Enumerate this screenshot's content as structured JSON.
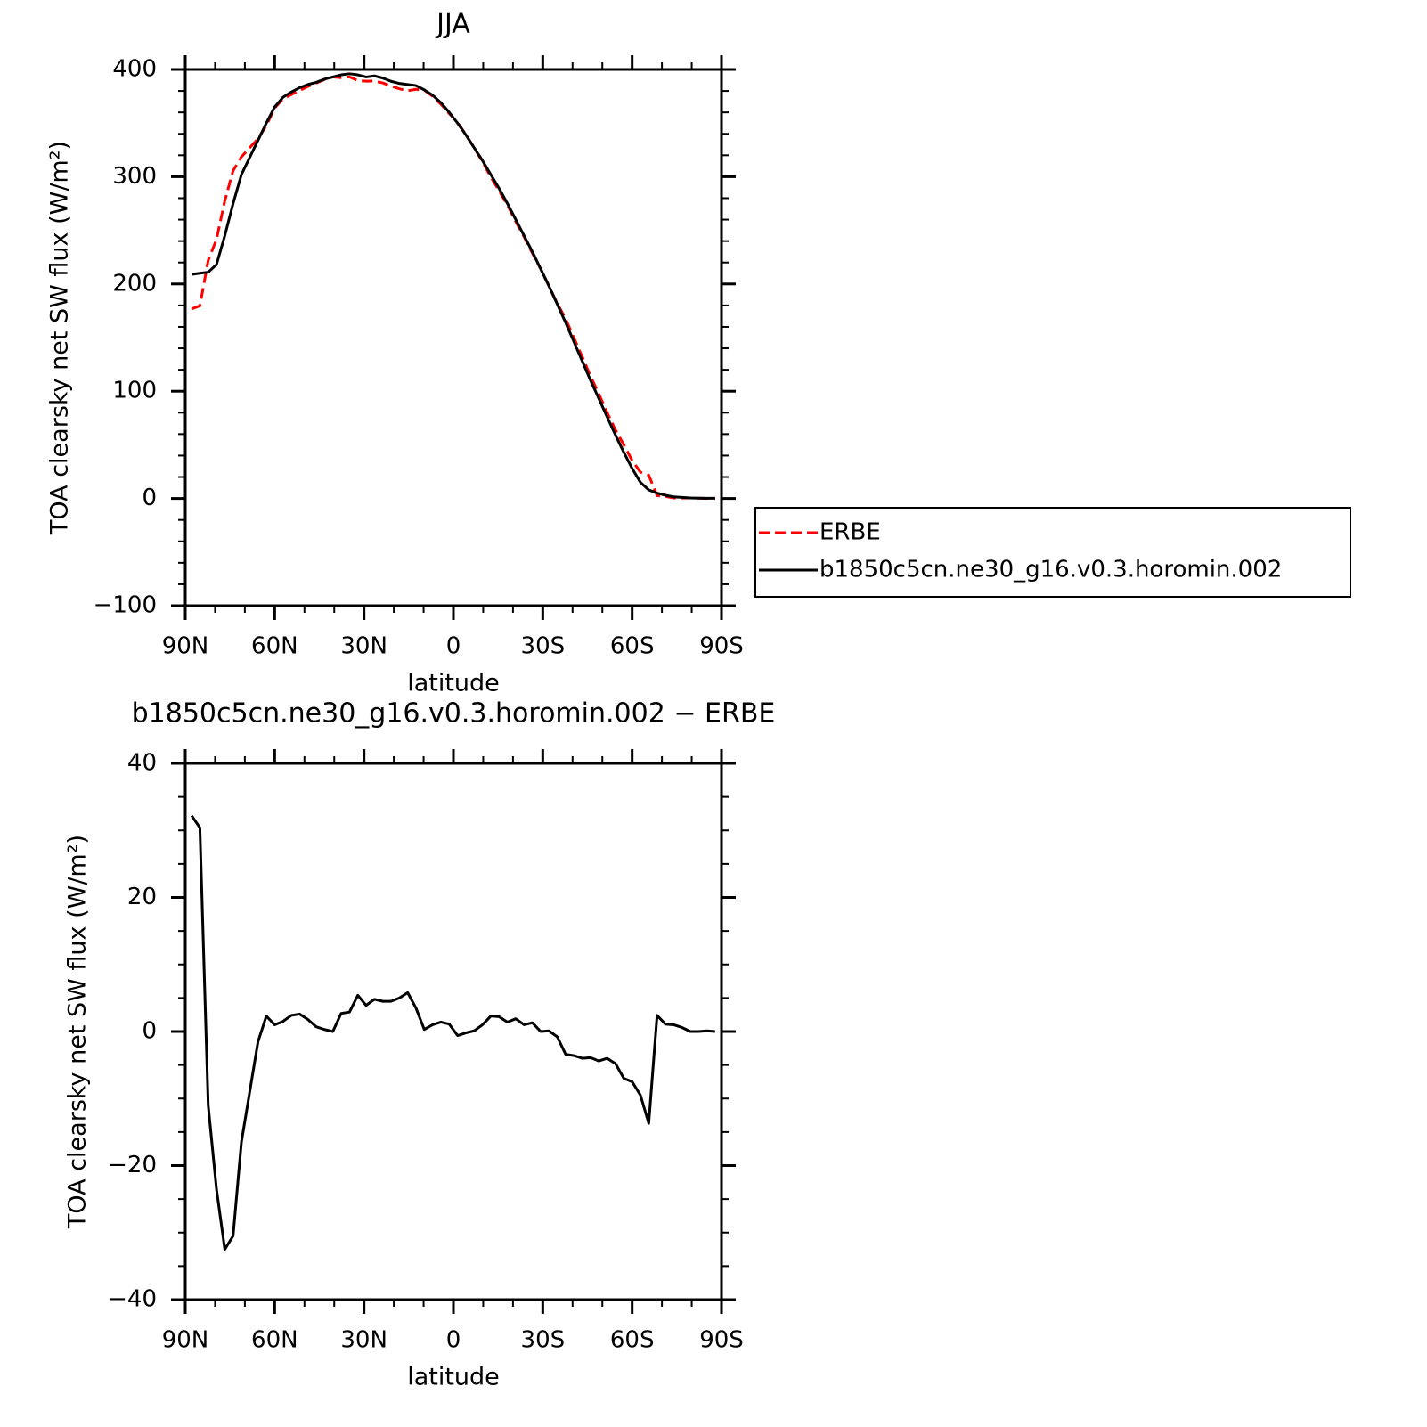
{
  "chart_data": [
    {
      "type": "line",
      "title": "JJA",
      "xlabel": "latitude",
      "ylabel": "TOA clearsky net SW flux (W/m²)",
      "x": [
        87.86,
        85.1,
        82.31,
        79.53,
        76.74,
        73.95,
        71.16,
        68.37,
        65.58,
        62.79,
        60.0,
        57.21,
        54.42,
        51.63,
        48.84,
        46.05,
        43.26,
        40.47,
        37.67,
        34.88,
        32.09,
        29.3,
        26.51,
        23.72,
        20.93,
        18.14,
        15.35,
        12.56,
        9.77,
        6.98,
        4.19,
        1.4,
        -1.4,
        -4.19,
        -6.98,
        -9.77,
        -12.56,
        -15.35,
        -18.14,
        -20.93,
        -23.72,
        -26.51,
        -29.3,
        -32.09,
        -34.88,
        -37.67,
        -40.47,
        -43.26,
        -46.05,
        -48.84,
        -51.63,
        -54.42,
        -57.21,
        -60.0,
        -62.79,
        -65.58,
        -68.37,
        -71.16,
        -73.95,
        -76.74,
        -79.53,
        -82.31,
        -85.1,
        -87.86
      ],
      "series": [
        {
          "name": "ERBE",
          "color": "#ff0000",
          "linestyle": "dashed",
          "values": [
            176.8,
            179.6,
            222,
            241.5,
            277.5,
            305.5,
            318.5,
            327,
            335.5,
            347.7,
            364,
            372.5,
            376.6,
            380.4,
            384.2,
            387.3,
            390.7,
            393,
            392.3,
            393.1,
            389.6,
            389.1,
            389.2,
            387.5,
            384.5,
            382,
            380.2,
            381.5,
            380.7,
            375,
            367.6,
            358.9,
            350.6,
            339.2,
            326.9,
            314,
            299.7,
            286.8,
            273.6,
            258.1,
            244,
            228.7,
            214,
            197.9,
            181.8,
            167.4,
            149.6,
            132,
            113.9,
            97.4,
            80,
            63.8,
            50,
            35.5,
            24.5,
            21.7,
            2.6,
            1.9,
            0.5,
            0.4,
            0.5,
            0.3,
            0.1,
            0.2
          ]
        },
        {
          "name": "b1850c5cn.ne30_g16.v0.3.horomin.002",
          "color": "#000000",
          "linestyle": "solid",
          "values": [
            209,
            210,
            211,
            218,
            245,
            275,
            302,
            318,
            334,
            350,
            365,
            374,
            379,
            383,
            386,
            388,
            391,
            393,
            395,
            396,
            395,
            393,
            394,
            392,
            389,
            387,
            386,
            385,
            381,
            376,
            369,
            360,
            350,
            339,
            327,
            315,
            302,
            289,
            275,
            260,
            245,
            230,
            214,
            198,
            181,
            164,
            146,
            128,
            110,
            93,
            76,
            59,
            43,
            28,
            15,
            8,
            5,
            3,
            1.5,
            1,
            0.5,
            0.3,
            0.2,
            0.2
          ]
        }
      ],
      "xlim": [
        90,
        -90
      ],
      "xticks": [
        {
          "value": 90,
          "label": "90N"
        },
        {
          "value": 60,
          "label": "60N"
        },
        {
          "value": 30,
          "label": "30N"
        },
        0,
        {
          "value": -30,
          "label": "30S"
        },
        {
          "value": -60,
          "label": "60S"
        },
        {
          "value": -90,
          "label": "90S"
        }
      ],
      "ylim": [
        -100,
        400
      ],
      "yticks": [
        {
          "value": -100,
          "label": "−100"
        },
        0,
        100,
        200,
        300,
        400
      ],
      "legend": "right"
    },
    {
      "type": "line",
      "title": "b1850c5cn.ne30_g16.v0.3.horomin.002 − ERBE",
      "xlabel": "latitude",
      "ylabel": "TOA clearsky net SW flux (W/m²)",
      "x": [
        87.86,
        85.1,
        82.31,
        79.53,
        76.74,
        73.95,
        71.16,
        68.37,
        65.58,
        62.79,
        60.0,
        57.21,
        54.42,
        51.63,
        48.84,
        46.05,
        43.26,
        40.47,
        37.67,
        34.88,
        32.09,
        29.3,
        26.51,
        23.72,
        20.93,
        18.14,
        15.35,
        12.56,
        9.77,
        6.98,
        4.19,
        1.4,
        -1.4,
        -4.19,
        -6.98,
        -9.77,
        -12.56,
        -15.35,
        -18.14,
        -20.93,
        -23.72,
        -26.51,
        -29.3,
        -32.09,
        -34.88,
        -37.67,
        -40.47,
        -43.26,
        -46.05,
        -48.84,
        -51.63,
        -54.42,
        -57.21,
        -60.0,
        -62.79,
        -65.58,
        -68.37,
        -71.16,
        -73.95,
        -76.74,
        -79.53,
        -82.31,
        -85.1,
        -87.86
      ],
      "series": [
        {
          "color": "#000000",
          "linestyle": "solid",
          "values": [
            32.2,
            30.4,
            -11,
            -23.5,
            -32.5,
            -30.5,
            -16.5,
            -9,
            -1.5,
            2.3,
            1.0,
            1.5,
            2.4,
            2.6,
            1.8,
            0.7,
            0.3,
            0,
            2.7,
            2.9,
            5.4,
            3.9,
            4.8,
            4.5,
            4.5,
            5.0,
            5.8,
            3.5,
            0.3,
            1.0,
            1.4,
            1.1,
            -0.6,
            -0.2,
            0.1,
            1.0,
            2.3,
            2.2,
            1.4,
            1.9,
            1.0,
            1.3,
            0,
            0.1,
            -0.8,
            -3.4,
            -3.6,
            -4.0,
            -3.9,
            -4.4,
            -4.0,
            -4.8,
            -7.0,
            -7.5,
            -9.5,
            -13.7,
            2.4,
            1.1,
            1.0,
            0.6,
            0,
            0,
            0.1,
            0
          ]
        }
      ],
      "xlim": [
        90,
        -90
      ],
      "xticks": [
        {
          "value": 90,
          "label": "90N"
        },
        {
          "value": 60,
          "label": "60N"
        },
        {
          "value": 30,
          "label": "30N"
        },
        0,
        {
          "value": -30,
          "label": "30S"
        },
        {
          "value": -60,
          "label": "60S"
        },
        {
          "value": -90,
          "label": "90S"
        }
      ],
      "ylim": [
        -40,
        40
      ],
      "yticks": [
        {
          "value": -40,
          "label": "−40"
        },
        {
          "value": -20,
          "label": "−20"
        },
        0,
        20,
        40
      ]
    }
  ]
}
